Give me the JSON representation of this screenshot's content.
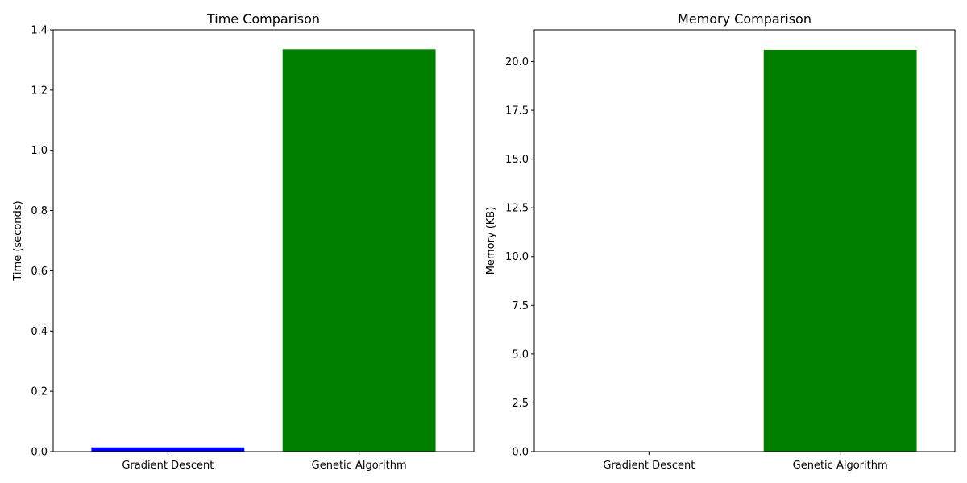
{
  "chart_data": [
    {
      "type": "bar",
      "title": "Time Comparison",
      "xlabel": "",
      "ylabel": "Time (seconds)",
      "categories": [
        "Gradient Descent",
        "Genetic Algorithm"
      ],
      "values": [
        0.014,
        1.335
      ],
      "colors": [
        "#0000ff",
        "#008000"
      ],
      "ylim": [
        0,
        1.4
      ],
      "yticks": [
        0.0,
        0.2,
        0.4,
        0.6,
        0.8,
        1.0,
        1.2,
        1.4
      ],
      "ytick_labels": [
        "0.0",
        "0.2",
        "0.4",
        "0.6",
        "0.8",
        "1.0",
        "1.2",
        "1.4"
      ],
      "grid": false,
      "legend": "none"
    },
    {
      "type": "bar",
      "title": "Memory Comparison",
      "xlabel": "",
      "ylabel": "Memory (KB)",
      "categories": [
        "Gradient Descent",
        "Genetic Algorithm"
      ],
      "values": [
        0.0,
        20.6
      ],
      "colors": [
        "#0000ff",
        "#008000"
      ],
      "ylim": [
        0,
        21.63
      ],
      "yticks": [
        0.0,
        2.5,
        5.0,
        7.5,
        10.0,
        12.5,
        15.0,
        17.5,
        20.0
      ],
      "ytick_labels": [
        "0.0",
        "2.5",
        "5.0",
        "7.5",
        "10.0",
        "12.5",
        "15.0",
        "17.5",
        "20.0"
      ],
      "grid": false,
      "legend": "none"
    }
  ]
}
